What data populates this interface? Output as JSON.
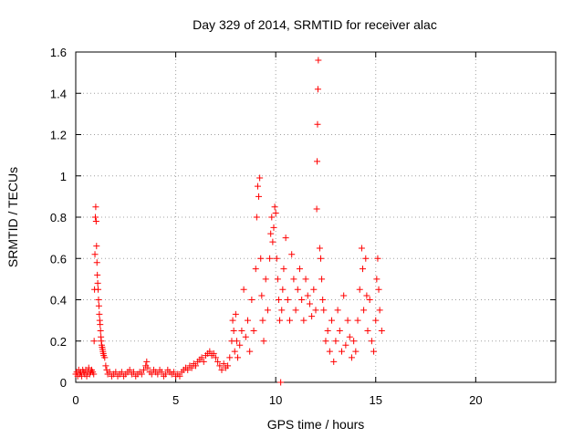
{
  "chart_data": {
    "type": "scatter",
    "title": "Day 329 of 2014, SRMTID for receiver alac",
    "xlabel": "GPS time / hours",
    "ylabel": "SRMTID / TECUs",
    "xlim": [
      0,
      24
    ],
    "ylim": [
      0,
      1.6
    ],
    "xticks": [
      0,
      5,
      10,
      15,
      20
    ],
    "xtick_labels": [
      "0",
      "5",
      "10",
      "15",
      "20"
    ],
    "yticks": [
      0,
      0.2,
      0.4,
      0.6,
      0.8,
      1.0,
      1.2,
      1.4,
      1.6
    ],
    "ytick_labels": [
      "0",
      "0.2",
      "0.4",
      "0.6",
      "0.8",
      "1",
      "1.2",
      "1.4",
      "1.6"
    ],
    "grid": true,
    "marker": "+",
    "series": [
      {
        "name": "SRMTID",
        "color": "#ff0000",
        "points": [
          [
            0.0,
            0.04
          ],
          [
            0.05,
            0.05
          ],
          [
            0.1,
            0.03
          ],
          [
            0.15,
            0.06
          ],
          [
            0.2,
            0.04
          ],
          [
            0.25,
            0.05
          ],
          [
            0.3,
            0.03
          ],
          [
            0.35,
            0.06
          ],
          [
            0.4,
            0.05
          ],
          [
            0.45,
            0.04
          ],
          [
            0.5,
            0.06
          ],
          [
            0.55,
            0.03
          ],
          [
            0.6,
            0.05
          ],
          [
            0.65,
            0.07
          ],
          [
            0.7,
            0.04
          ],
          [
            0.75,
            0.05
          ],
          [
            0.8,
            0.06
          ],
          [
            0.85,
            0.05
          ],
          [
            0.9,
            0.04
          ],
          [
            0.92,
            0.2
          ],
          [
            0.94,
            0.45
          ],
          [
            0.96,
            0.62
          ],
          [
            0.98,
            0.8
          ],
          [
            1.0,
            0.85
          ],
          [
            1.02,
            0.78
          ],
          [
            1.04,
            0.66
          ],
          [
            1.06,
            0.58
          ],
          [
            1.08,
            0.52
          ],
          [
            1.1,
            0.48
          ],
          [
            1.12,
            0.45
          ],
          [
            1.14,
            0.4
          ],
          [
            1.16,
            0.37
          ],
          [
            1.18,
            0.33
          ],
          [
            1.2,
            0.3
          ],
          [
            1.22,
            0.28
          ],
          [
            1.24,
            0.25
          ],
          [
            1.26,
            0.22
          ],
          [
            1.28,
            0.2
          ],
          [
            1.3,
            0.18
          ],
          [
            1.32,
            0.17
          ],
          [
            1.34,
            0.16
          ],
          [
            1.36,
            0.15
          ],
          [
            1.38,
            0.14
          ],
          [
            1.4,
            0.13
          ],
          [
            1.45,
            0.12
          ],
          [
            1.5,
            0.08
          ],
          [
            1.55,
            0.06
          ],
          [
            1.6,
            0.04
          ],
          [
            1.7,
            0.05
          ],
          [
            1.8,
            0.03
          ],
          [
            1.9,
            0.04
          ],
          [
            2.0,
            0.05
          ],
          [
            2.1,
            0.03
          ],
          [
            2.2,
            0.04
          ],
          [
            2.3,
            0.05
          ],
          [
            2.4,
            0.03
          ],
          [
            2.5,
            0.04
          ],
          [
            2.6,
            0.05
          ],
          [
            2.7,
            0.06
          ],
          [
            2.8,
            0.04
          ],
          [
            2.9,
            0.05
          ],
          [
            3.0,
            0.03
          ],
          [
            3.1,
            0.04
          ],
          [
            3.2,
            0.05
          ],
          [
            3.3,
            0.04
          ],
          [
            3.4,
            0.06
          ],
          [
            3.5,
            0.08
          ],
          [
            3.55,
            0.1
          ],
          [
            3.6,
            0.07
          ],
          [
            3.7,
            0.05
          ],
          [
            3.8,
            0.04
          ],
          [
            3.9,
            0.06
          ],
          [
            4.0,
            0.05
          ],
          [
            4.1,
            0.04
          ],
          [
            4.2,
            0.06
          ],
          [
            4.3,
            0.05
          ],
          [
            4.4,
            0.03
          ],
          [
            4.5,
            0.04
          ],
          [
            4.6,
            0.06
          ],
          [
            4.7,
            0.05
          ],
          [
            4.8,
            0.04
          ],
          [
            4.9,
            0.05
          ],
          [
            5.0,
            0.03
          ],
          [
            5.1,
            0.04
          ],
          [
            5.2,
            0.03
          ],
          [
            5.3,
            0.05
          ],
          [
            5.4,
            0.06
          ],
          [
            5.5,
            0.07
          ],
          [
            5.6,
            0.06
          ],
          [
            5.7,
            0.08
          ],
          [
            5.8,
            0.07
          ],
          [
            5.9,
            0.09
          ],
          [
            6.0,
            0.08
          ],
          [
            6.1,
            0.1
          ],
          [
            6.2,
            0.11
          ],
          [
            6.3,
            0.12
          ],
          [
            6.4,
            0.1
          ],
          [
            6.5,
            0.13
          ],
          [
            6.6,
            0.14
          ],
          [
            6.7,
            0.15
          ],
          [
            6.8,
            0.13
          ],
          [
            6.9,
            0.14
          ],
          [
            7.0,
            0.12
          ],
          [
            7.1,
            0.1
          ],
          [
            7.2,
            0.08
          ],
          [
            7.3,
            0.06
          ],
          [
            7.4,
            0.09
          ],
          [
            7.5,
            0.07
          ],
          [
            7.6,
            0.08
          ],
          [
            7.7,
            0.12
          ],
          [
            7.8,
            0.2
          ],
          [
            7.85,
            0.3
          ],
          [
            7.9,
            0.25
          ],
          [
            7.95,
            0.15
          ],
          [
            8.0,
            0.33
          ],
          [
            8.05,
            0.2
          ],
          [
            8.1,
            0.12
          ],
          [
            8.2,
            0.18
          ],
          [
            8.3,
            0.25
          ],
          [
            8.4,
            0.45
          ],
          [
            8.5,
            0.22
          ],
          [
            8.6,
            0.3
          ],
          [
            8.7,
            0.15
          ],
          [
            8.8,
            0.4
          ],
          [
            8.9,
            0.25
          ],
          [
            9.0,
            0.55
          ],
          [
            9.05,
            0.8
          ],
          [
            9.1,
            0.95
          ],
          [
            9.15,
            0.9
          ],
          [
            9.2,
            0.99
          ],
          [
            9.25,
            0.6
          ],
          [
            9.3,
            0.42
          ],
          [
            9.35,
            0.3
          ],
          [
            9.4,
            0.2
          ],
          [
            9.5,
            0.5
          ],
          [
            9.6,
            0.35
          ],
          [
            9.7,
            0.6
          ],
          [
            9.75,
            0.72
          ],
          [
            9.8,
            0.8
          ],
          [
            9.85,
            0.68
          ],
          [
            9.9,
            0.75
          ],
          [
            9.95,
            0.85
          ],
          [
            10.0,
            0.82
          ],
          [
            10.05,
            0.6
          ],
          [
            10.1,
            0.5
          ],
          [
            10.15,
            0.4
          ],
          [
            10.2,
            0.3
          ],
          [
            10.25,
            0.0
          ],
          [
            10.3,
            0.35
          ],
          [
            10.35,
            0.45
          ],
          [
            10.4,
            0.55
          ],
          [
            10.5,
            0.7
          ],
          [
            10.6,
            0.4
          ],
          [
            10.7,
            0.3
          ],
          [
            10.8,
            0.62
          ],
          [
            10.9,
            0.5
          ],
          [
            11.0,
            0.35
          ],
          [
            11.1,
            0.45
          ],
          [
            11.2,
            0.55
          ],
          [
            11.3,
            0.4
          ],
          [
            11.4,
            0.3
          ],
          [
            11.5,
            0.5
          ],
          [
            11.6,
            0.42
          ],
          [
            11.7,
            0.38
          ],
          [
            11.8,
            0.32
          ],
          [
            11.9,
            0.45
          ],
          [
            12.0,
            0.35
          ],
          [
            12.05,
            0.84
          ],
          [
            12.07,
            1.07
          ],
          [
            12.09,
            1.25
          ],
          [
            12.11,
            1.42
          ],
          [
            12.13,
            1.56
          ],
          [
            12.2,
            0.65
          ],
          [
            12.25,
            0.6
          ],
          [
            12.3,
            0.5
          ],
          [
            12.35,
            0.4
          ],
          [
            12.4,
            0.35
          ],
          [
            12.5,
            0.2
          ],
          [
            12.6,
            0.25
          ],
          [
            12.7,
            0.15
          ],
          [
            12.8,
            0.3
          ],
          [
            12.9,
            0.1
          ],
          [
            13.0,
            0.2
          ],
          [
            13.1,
            0.35
          ],
          [
            13.2,
            0.25
          ],
          [
            13.3,
            0.15
          ],
          [
            13.4,
            0.42
          ],
          [
            13.5,
            0.18
          ],
          [
            13.6,
            0.3
          ],
          [
            13.7,
            0.22
          ],
          [
            13.8,
            0.12
          ],
          [
            13.9,
            0.2
          ],
          [
            14.0,
            0.15
          ],
          [
            14.1,
            0.3
          ],
          [
            14.2,
            0.45
          ],
          [
            14.3,
            0.65
          ],
          [
            14.35,
            0.55
          ],
          [
            14.4,
            0.35
          ],
          [
            14.5,
            0.6
          ],
          [
            14.55,
            0.42
          ],
          [
            14.6,
            0.25
          ],
          [
            14.7,
            0.4
          ],
          [
            14.8,
            0.2
          ],
          [
            14.9,
            0.15
          ],
          [
            15.0,
            0.3
          ],
          [
            15.05,
            0.5
          ],
          [
            15.1,
            0.6
          ],
          [
            15.15,
            0.45
          ],
          [
            15.2,
            0.35
          ],
          [
            15.3,
            0.25
          ]
        ]
      }
    ]
  }
}
